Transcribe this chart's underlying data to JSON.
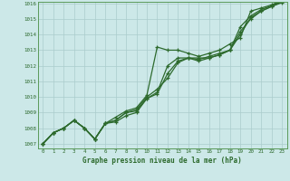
{
  "title": "Graphe pression niveau de la mer (hPa)",
  "x_hours": [
    0,
    1,
    2,
    3,
    4,
    5,
    6,
    7,
    8,
    9,
    10,
    11,
    12,
    13,
    14,
    15,
    16,
    17,
    18,
    19,
    20,
    21,
    22,
    23
  ],
  "line1": [
    1007.0,
    1007.7,
    1008.0,
    1008.5,
    1008.0,
    1007.3,
    1008.3,
    1008.5,
    1009.0,
    1009.2,
    1010.0,
    1010.5,
    1011.2,
    1012.2,
    1012.5,
    1012.3,
    1012.5,
    1012.7,
    1013.0,
    1014.0,
    1015.1,
    1015.5,
    1015.8,
    1016.1
  ],
  "line2": [
    1007.0,
    1007.7,
    1008.0,
    1008.5,
    1008.0,
    1007.3,
    1008.3,
    1008.7,
    1009.1,
    1009.3,
    1010.1,
    1013.2,
    1013.0,
    1013.0,
    1012.8,
    1012.6,
    1012.8,
    1013.0,
    1013.4,
    1013.8,
    1015.5,
    1015.7,
    1015.9,
    1016.2
  ],
  "line3": [
    1007.0,
    1007.7,
    1008.0,
    1008.5,
    1008.0,
    1007.3,
    1008.3,
    1008.5,
    1009.0,
    1009.1,
    1009.9,
    1010.3,
    1012.0,
    1012.5,
    1012.5,
    1012.5,
    1012.5,
    1012.7,
    1013.0,
    1014.5,
    1015.2,
    1015.6,
    1015.85,
    1016.15
  ],
  "line4": [
    1007.0,
    1007.7,
    1008.0,
    1008.5,
    1008.0,
    1007.3,
    1008.3,
    1008.4,
    1008.8,
    1009.0,
    1009.9,
    1010.2,
    1011.5,
    1012.3,
    1012.5,
    1012.4,
    1012.6,
    1012.8,
    1013.0,
    1014.2,
    1015.0,
    1015.5,
    1015.8,
    1016.05
  ],
  "line_color": "#2d6a2d",
  "bg_color": "#cce8e8",
  "grid_color": "#aacccc",
  "ylim": [
    1007,
    1016
  ],
  "yticks": [
    1007,
    1008,
    1009,
    1010,
    1011,
    1012,
    1013,
    1014,
    1015,
    1016
  ],
  "xticks": [
    0,
    1,
    2,
    3,
    4,
    5,
    6,
    7,
    8,
    9,
    10,
    11,
    12,
    13,
    14,
    15,
    16,
    17,
    18,
    19,
    20,
    21,
    22,
    23
  ]
}
